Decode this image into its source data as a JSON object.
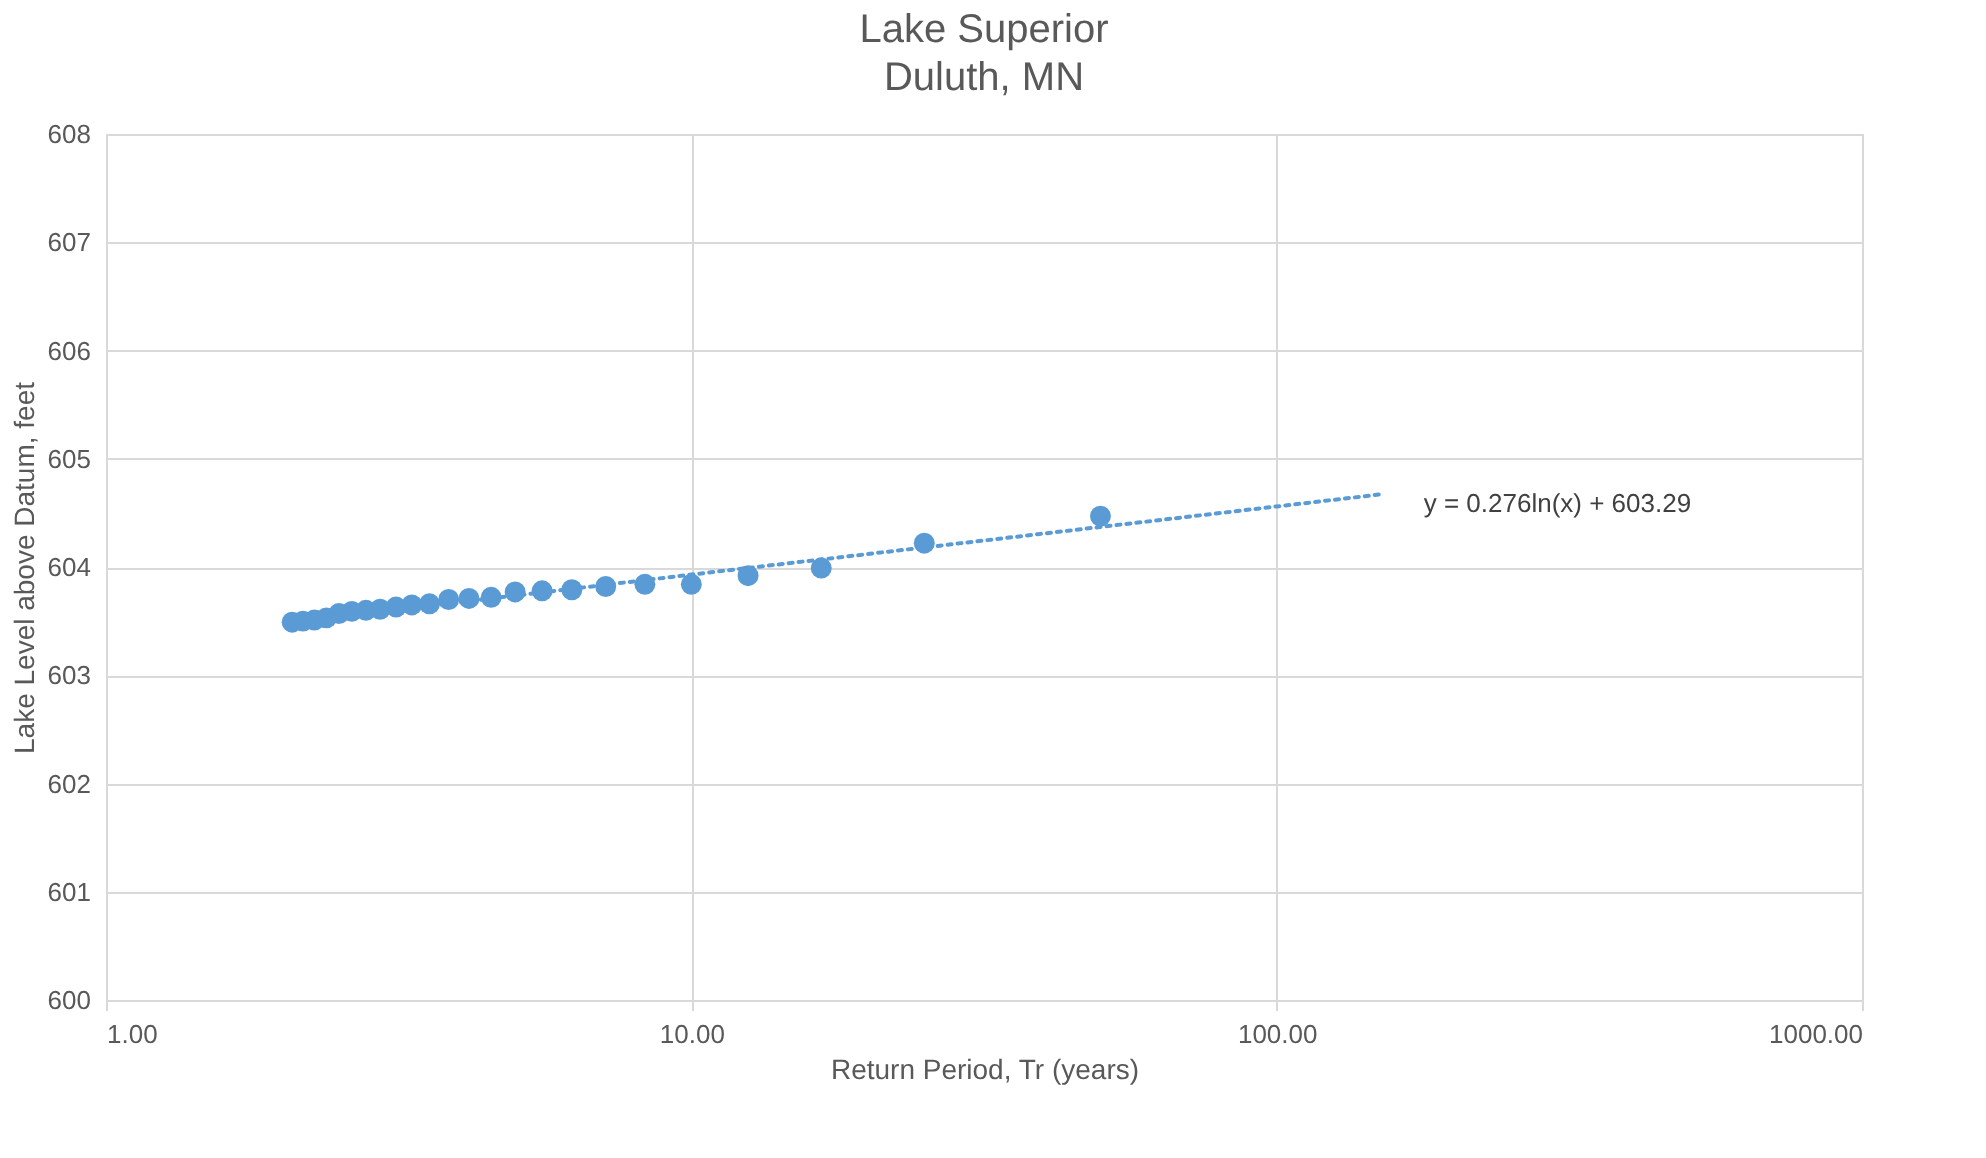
{
  "chart_data": {
    "type": "scatter",
    "title": "Lake Superior",
    "subtitle": "Duluth, MN",
    "xlabel": "Return Period, Tr (years)",
    "ylabel": "Lake Level above Datum, feet",
    "log": "x",
    "grid": true,
    "xlim": [
      1,
      1000
    ],
    "ylim": [
      600,
      608
    ],
    "xticks": [
      {
        "value": 1,
        "label": "1.00"
      },
      {
        "value": 10,
        "label": "10.00"
      },
      {
        "value": 100,
        "label": "100.00"
      },
      {
        "value": 1000,
        "label": "1000.00"
      }
    ],
    "yticks": [
      600,
      601,
      602,
      603,
      604,
      605,
      606,
      607,
      608
    ],
    "series": [
      {
        "marker": "circle",
        "color": "#5b9bd5",
        "x": [
          50,
          25,
          16.67,
          12.5,
          10,
          8.33,
          7.14,
          6.25,
          5.56,
          5,
          4.55,
          4.17,
          3.85,
          3.57,
          3.33,
          3.13,
          2.94,
          2.78,
          2.63,
          2.5,
          2.38,
          2.27,
          2.17,
          2.08
        ],
        "values": [
          604.47,
          604.22,
          603.99,
          603.92,
          603.84,
          603.84,
          603.82,
          603.79,
          603.78,
          603.77,
          603.72,
          603.71,
          603.7,
          603.66,
          603.65,
          603.63,
          603.61,
          603.6,
          603.59,
          603.57,
          603.53,
          603.51,
          603.5,
          603.49
        ]
      },
      {
        "type": "line",
        "line_style": "dotted",
        "color": "#5b9bd5",
        "x": [
          2.08,
          10,
          50,
          150
        ],
        "values": [
          603.49,
          603.93,
          604.37,
          604.67
        ]
      }
    ],
    "annotations": [
      "y = 0.276ln(x) + 603.29"
    ]
  }
}
